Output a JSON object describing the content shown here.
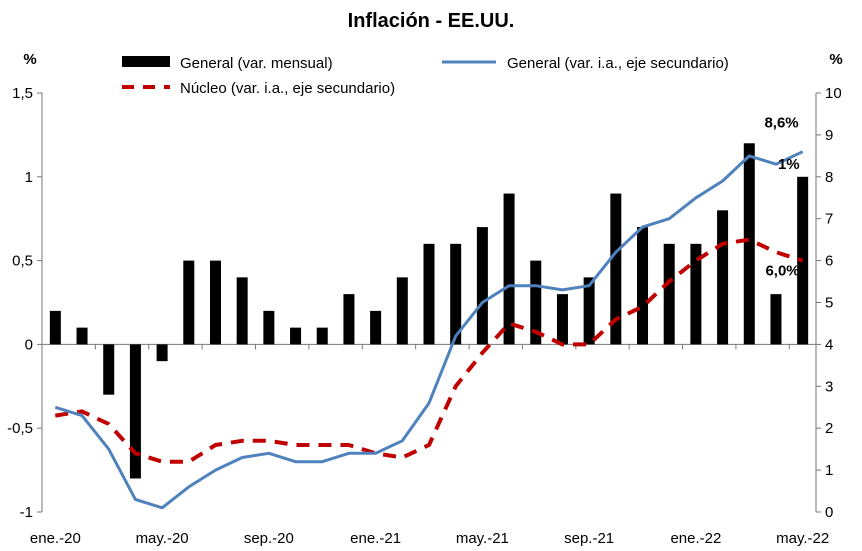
{
  "chart_data": {
    "type": "bar+line",
    "title": "Inflación - EE.UU.",
    "y_unit_left": "%",
    "y_unit_right": "%",
    "ylim_left": [
      -1,
      1.5
    ],
    "ylim_right": [
      0,
      10
    ],
    "yticks_left": [
      "-1",
      "-0,5",
      "0",
      "0,5",
      "1",
      "1,5"
    ],
    "yticks_left_values": [
      -1,
      -0.5,
      0,
      0.5,
      1,
      1.5
    ],
    "yticks_right": [
      "0",
      "1",
      "2",
      "3",
      "4",
      "5",
      "6",
      "7",
      "8",
      "9",
      "10"
    ],
    "yticks_right_values": [
      0,
      1,
      2,
      3,
      4,
      5,
      6,
      7,
      8,
      9,
      10
    ],
    "xtick_labels": [
      "ene.-20",
      "may.-20",
      "sep.-20",
      "ene.-21",
      "may.-21",
      "sep.-21",
      "ene.-22",
      "may.-22"
    ],
    "xtick_indices": [
      0,
      4,
      8,
      12,
      16,
      20,
      24,
      28
    ],
    "categories": [
      "ene.-20",
      "feb.-20",
      "mar.-20",
      "abr.-20",
      "may.-20",
      "jun.-20",
      "jul.-20",
      "ago.-20",
      "sep.-20",
      "oct.-20",
      "nov.-20",
      "dic.-20",
      "ene.-21",
      "feb.-21",
      "mar.-21",
      "abr.-21",
      "may.-21",
      "jun.-21",
      "jul.-21",
      "ago.-21",
      "sep.-21",
      "oct.-21",
      "nov.-21",
      "dic.-21",
      "ene.-22",
      "feb.-22",
      "mar.-22",
      "abr.-22",
      "may.-22"
    ],
    "series": [
      {
        "name": "General (var. mensual)",
        "kind": "bar",
        "axis": "left",
        "color": "#000000",
        "values": [
          0.2,
          0.1,
          -0.3,
          -0.8,
          -0.1,
          0.5,
          0.5,
          0.4,
          0.2,
          0.1,
          0.1,
          0.3,
          0.2,
          0.4,
          0.6,
          0.6,
          0.7,
          0.9,
          0.5,
          0.3,
          0.4,
          0.9,
          0.7,
          0.6,
          0.6,
          0.8,
          1.2,
          0.3,
          1.0
        ]
      },
      {
        "name": "General (var. i.a., eje secundario)",
        "kind": "line",
        "axis": "right",
        "color": "#4f81bd",
        "values": [
          2.5,
          2.3,
          1.5,
          0.3,
          0.1,
          0.6,
          1.0,
          1.3,
          1.4,
          1.2,
          1.2,
          1.4,
          1.4,
          1.7,
          2.6,
          4.2,
          5.0,
          5.4,
          5.4,
          5.3,
          5.4,
          6.2,
          6.8,
          7.0,
          7.5,
          7.9,
          8.5,
          8.3,
          8.6
        ]
      },
      {
        "name": "Núcleo (var. i.a., eje secundario)",
        "kind": "line-dashed",
        "axis": "right",
        "color": "#c00000",
        "values": [
          2.3,
          2.4,
          2.1,
          1.4,
          1.2,
          1.2,
          1.6,
          1.7,
          1.7,
          1.6,
          1.6,
          1.6,
          1.4,
          1.3,
          1.6,
          3.0,
          3.8,
          4.5,
          4.3,
          4.0,
          4.0,
          4.6,
          4.9,
          5.5,
          6.0,
          6.4,
          6.5,
          6.2,
          6.0
        ]
      }
    ],
    "annotations": [
      {
        "text": "8,6%",
        "series": 1,
        "index": 28,
        "color": "#4f81bd"
      },
      {
        "text": "1%",
        "series": 0,
        "index": 28,
        "color": "#000000"
      },
      {
        "text": "6,0%",
        "series": 2,
        "index": 28,
        "color": "#c00000"
      }
    ],
    "legend": {
      "placement": "top",
      "entries": [
        "General (var. mensual)",
        "General (var. i.a., eje secundario)",
        "Núcleo (var. i.a., eje secundario)"
      ]
    },
    "grid": false
  }
}
